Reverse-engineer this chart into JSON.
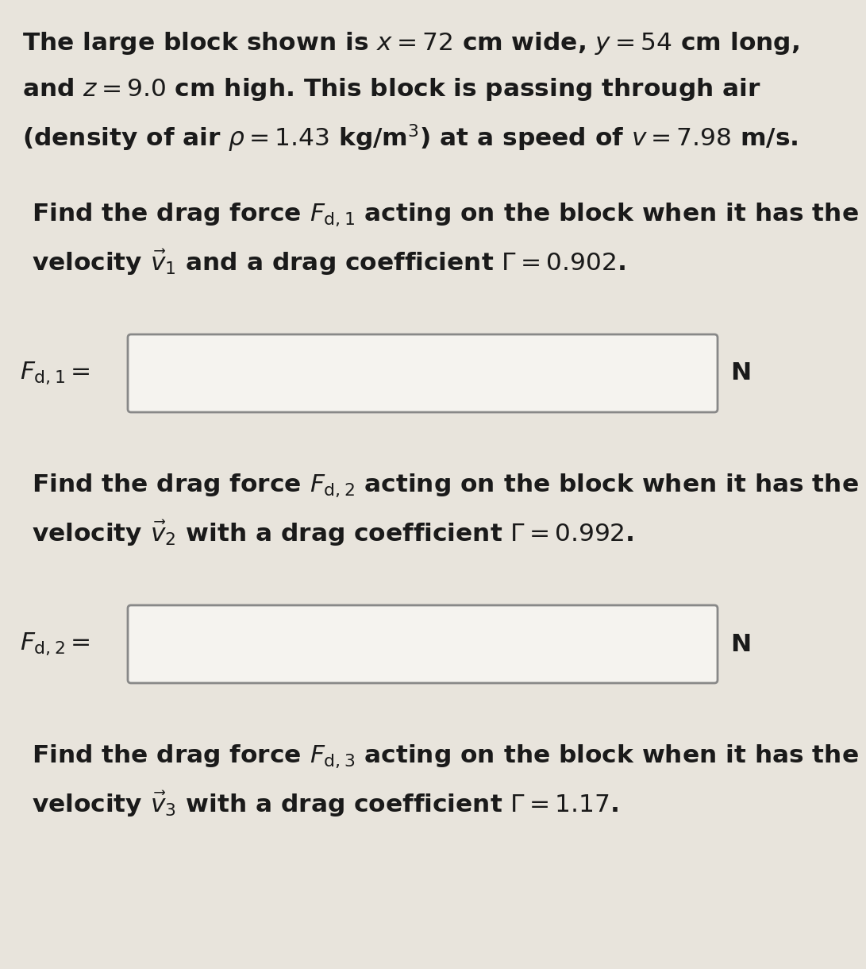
{
  "bg_color": "#e8e4dc",
  "text_color": "#1a1a1a",
  "box_color": "#f5f3ef",
  "box_edge_color": "#888888",
  "title_line1": "The large block shown is $x = 72$ cm wide, $y = 54$ cm long,",
  "title_line2": "and $z = 9.0$ cm high. This block is passing through air",
  "title_line3": "(density of air $\\rho = 1.43$ kg/m$^3$) at a speed of $v = 7.98$ m/s.",
  "s1_line1": "Find the drag force $F_{\\mathrm{d,1}}$ acting on the block when it has the",
  "s1_line2": "velocity $\\vec{v}_1$ and a drag coefficient $\\Gamma = 0.902$.",
  "label1": "$F_{\\mathrm{d,1}} =$",
  "unit1": "N",
  "s2_line1": "Find the drag force $F_{\\mathrm{d,2}}$ acting on the block when it has the",
  "s2_line2": "velocity $\\vec{v}_2$ with a drag coefficient $\\Gamma = 0.992$.",
  "label2": "$F_{\\mathrm{d,2}} =$",
  "unit2": "N",
  "s3_line1": "Find the drag force $F_{\\mathrm{d,3}}$ acting on the block when it has the",
  "s3_line2": "velocity $\\vec{v}_3$ with a drag coefficient $\\Gamma = 1.17$.",
  "fs": 22.5
}
